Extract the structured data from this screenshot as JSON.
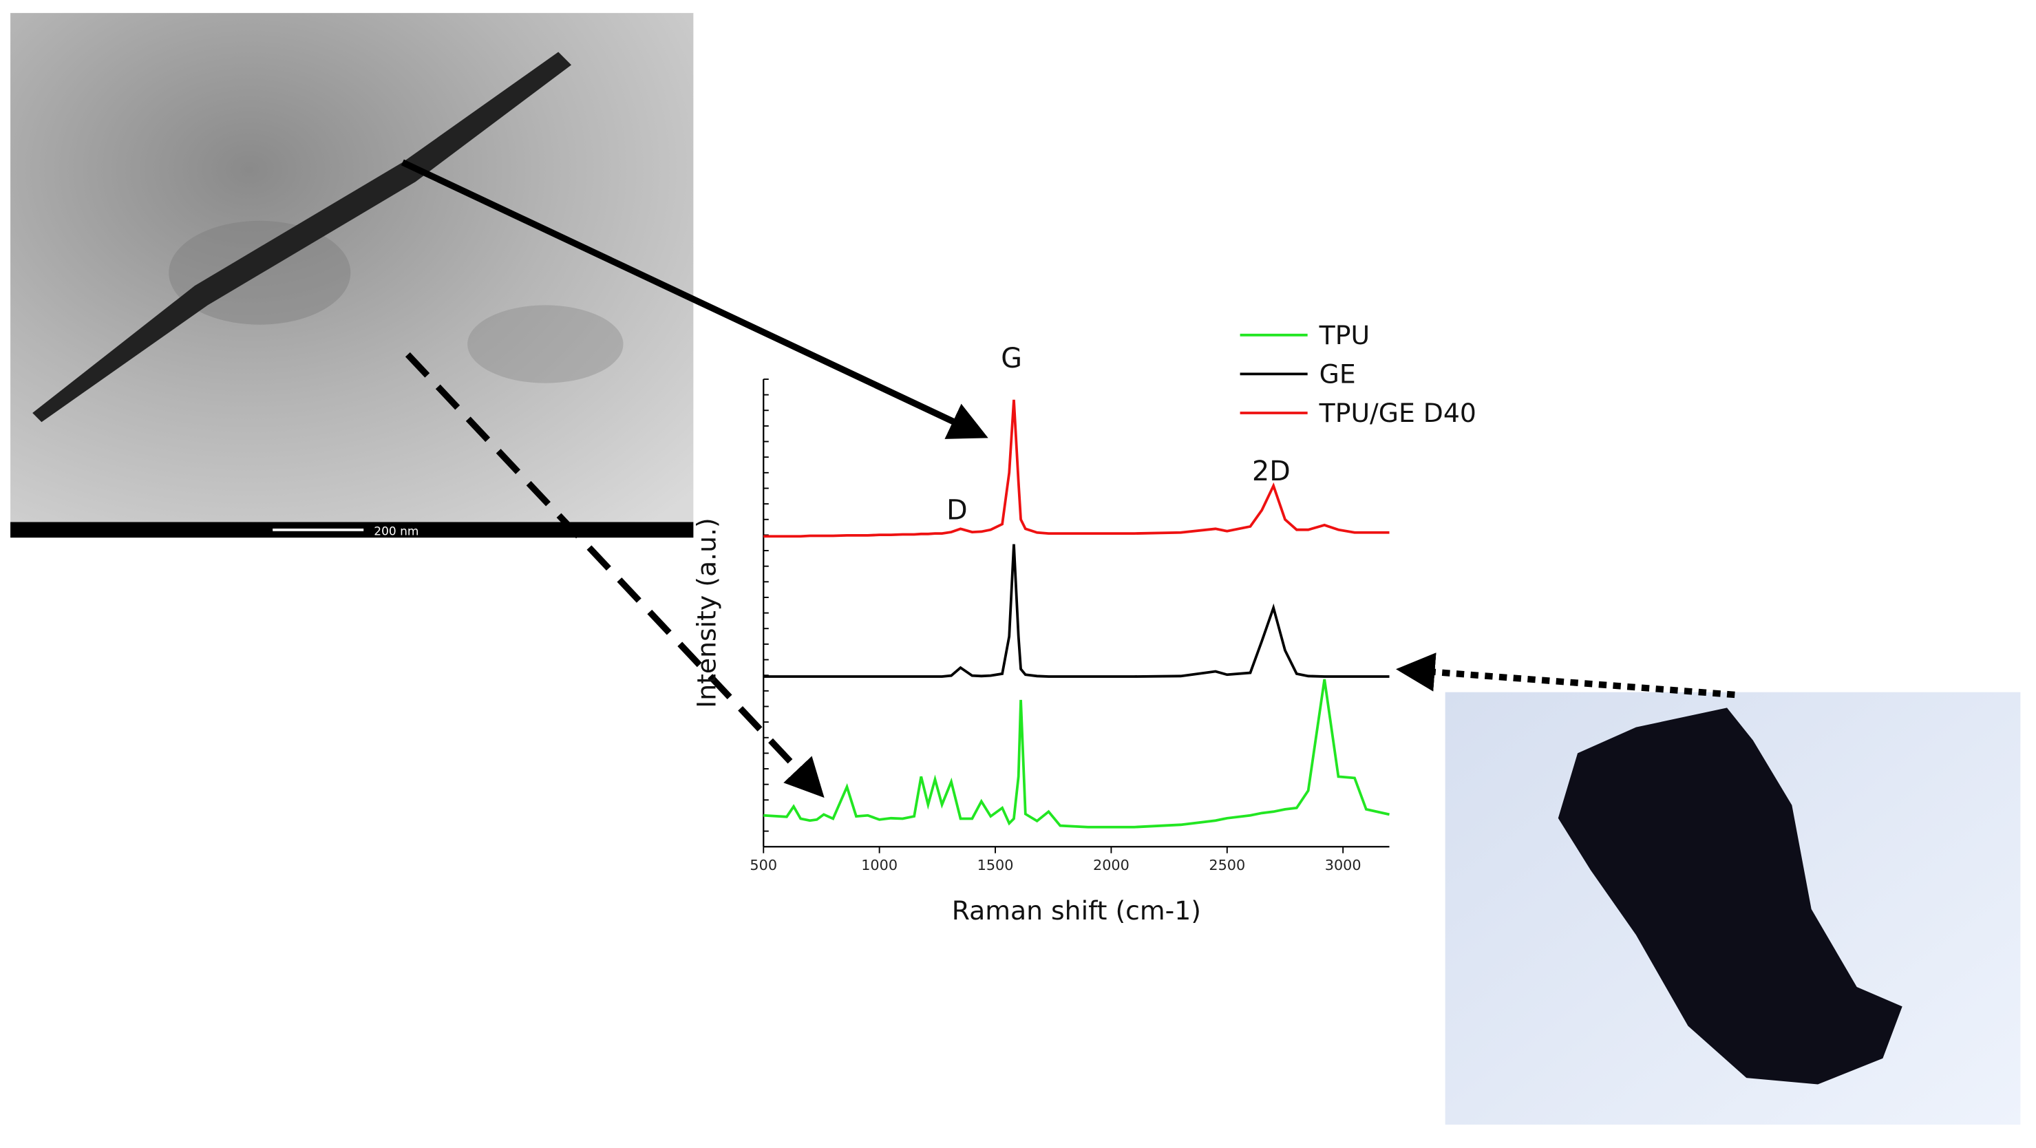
{
  "chart_data": {
    "type": "line",
    "x_label": "Raman shift (cm-1)",
    "y_label": "Intensity (a.u.)",
    "scale_bar": "200 nm",
    "annotations": [
      "D",
      "G",
      "2D"
    ],
    "xlim": [
      500,
      3200
    ],
    "ylim": [
      0,
      100
    ],
    "xticks": [
      500,
      1000,
      1500,
      2000,
      2500,
      3000
    ],
    "x": [
      500,
      600,
      630,
      660,
      700,
      730,
      760,
      800,
      860,
      900,
      950,
      1000,
      1050,
      1100,
      1150,
      1180,
      1210,
      1240,
      1270,
      1310,
      1350,
      1400,
      1440,
      1480,
      1530,
      1560,
      1580,
      1600,
      1610,
      1630,
      1680,
      1730,
      1780,
      1900,
      2100,
      2300,
      2450,
      2500,
      2600,
      2650,
      2700,
      2750,
      2800,
      2850,
      2920,
      2980,
      3050,
      3100,
      3200
    ],
    "series": [
      {
        "name": "TPU",
        "color": "#22e622",
        "values": [
          6.7,
          6.4,
          8.6,
          6,
          5.6,
          5.8,
          6.9,
          6,
          12.8,
          6.5,
          6.7,
          5.8,
          6.1,
          6,
          6.5,
          15,
          9,
          14.4,
          9,
          13.9,
          6,
          6,
          9.7,
          6.5,
          8.3,
          5,
          6,
          15,
          31.4,
          7,
          5.5,
          7.5,
          4.5,
          4.2,
          4.2,
          4.7,
          5.6,
          6.1,
          6.7,
          7.2,
          7.5,
          8,
          8.3,
          12,
          35.8,
          15,
          14.7,
          8,
          6.9
        ]
      },
      {
        "name": "GE",
        "color": "#000000",
        "values": [
          36.4,
          36.4,
          36.4,
          36.4,
          36.4,
          36.4,
          36.4,
          36.4,
          36.4,
          36.4,
          36.4,
          36.4,
          36.4,
          36.4,
          36.4,
          36.4,
          36.4,
          36.4,
          36.4,
          36.6,
          38.3,
          36.6,
          36.5,
          36.6,
          37,
          45,
          64.7,
          45,
          38,
          36.8,
          36.5,
          36.4,
          36.4,
          36.4,
          36.4,
          36.5,
          37.5,
          36.8,
          37.2,
          44,
          51.1,
          42,
          37,
          36.5,
          36.4,
          36.4,
          36.4,
          36.4,
          36.4
        ]
      },
      {
        "name": "TPU/GE D40",
        "color": "#ee1111",
        "values": [
          66.4,
          66.4,
          66.4,
          66.4,
          66.5,
          66.5,
          66.5,
          66.5,
          66.6,
          66.6,
          66.6,
          66.7,
          66.7,
          66.8,
          66.8,
          66.9,
          66.9,
          67,
          67,
          67.3,
          68,
          67.3,
          67.4,
          67.8,
          69,
          80,
          95.6,
          78,
          70,
          68,
          67.2,
          67,
          67,
          67,
          67,
          67.2,
          68,
          67.5,
          68.5,
          72,
          77.2,
          70,
          67.8,
          67.8,
          68.8,
          67.8,
          67.2,
          67.2,
          67.2
        ]
      }
    ]
  }
}
